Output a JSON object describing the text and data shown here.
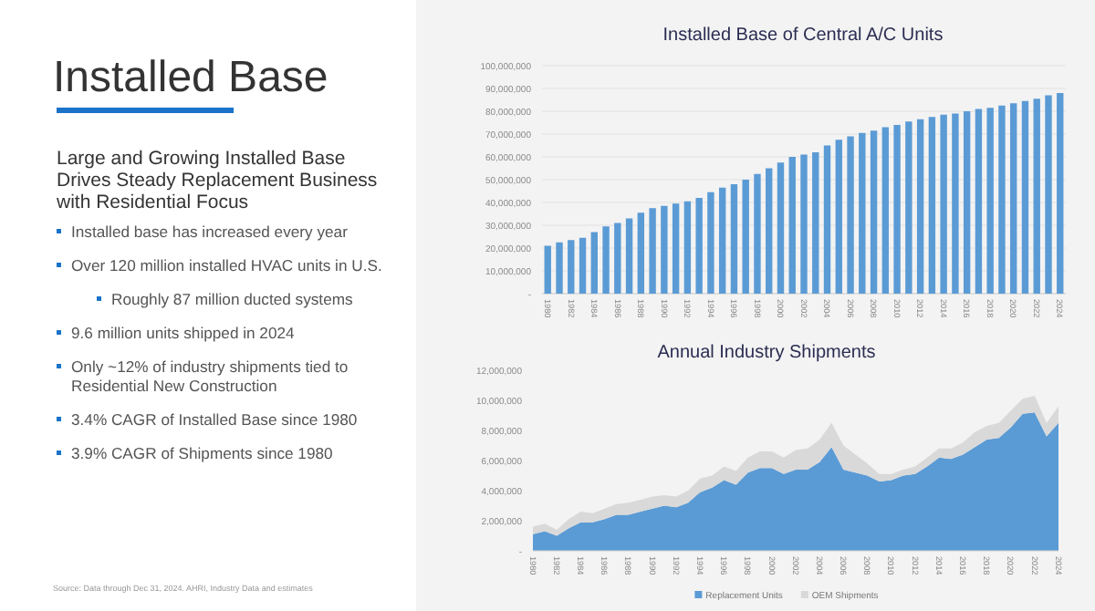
{
  "chart_data": [
    {
      "type": "other",
      "title": "Installed Base",
      "subtitle": "Large and Growing Installed Base Drives Steady Replacement Business with Residential Focus",
      "annotations": [
        "Installed base has increased every year",
        "Over 120 million installed HVAC units in U.S.",
        "Roughly 87 million ducted systems",
        "9.6 million units shipped in 2024",
        "Only ~12% of industry shipments tied to Residential New Construction",
        "3.4% CAGR of Installed Base since 1980",
        "3.9% CAGR of Shipments since 1980",
        "Source: Data through Dec 31, 2024.  AHRI, Industry Data and estimates"
      ]
    },
    {
      "type": "bar",
      "title": "Installed Base of Central A/C Units",
      "categories": [
        "1980",
        null,
        "1982",
        null,
        "1984",
        null,
        "1986",
        null,
        "1988",
        null,
        "1990",
        null,
        "1992",
        null,
        "1994",
        null,
        "1996",
        null,
        "1998",
        null,
        "2000",
        null,
        "2002",
        null,
        "2004",
        null,
        "2006",
        null,
        "2008",
        null,
        "2010",
        null,
        "2012",
        null,
        "2014",
        null,
        "2016",
        null,
        "2018",
        null,
        "2020",
        null,
        "2022",
        null,
        "2024"
      ],
      "values": [
        21000000,
        22500000,
        23500000,
        24500000,
        27000000,
        29500000,
        31000000,
        33000000,
        35500000,
        37500000,
        38500000,
        39500000,
        40500000,
        42000000,
        44500000,
        46500000,
        48000000,
        50000000,
        52500000,
        55000000,
        57500000,
        60000000,
        61000000,
        62000000,
        65000000,
        67500000,
        69000000,
        70500000,
        71500000,
        73000000,
        74000000,
        75500000,
        76500000,
        77500000,
        78500000,
        79000000,
        80000000,
        81000000,
        81500000,
        82500000,
        83500000,
        84500000,
        85500000,
        87000000,
        88000000
      ],
      "color": "#5b9bd5",
      "ylim": [
        0,
        100000000
      ],
      "yticks": [
        {
          "value": 0,
          "label": "-"
        },
        {
          "value": 10000000,
          "label": "10,000,000"
        },
        {
          "value": 20000000,
          "label": "20,000,000"
        },
        {
          "value": 30000000,
          "label": "30,000,000"
        },
        {
          "value": 40000000,
          "label": "40,000,000"
        },
        {
          "value": 50000000,
          "label": "50,000,000"
        },
        {
          "value": 60000000,
          "label": "60,000,000"
        },
        {
          "value": 70000000,
          "label": "70,000,000"
        },
        {
          "value": 80000000,
          "label": "80,000,000"
        },
        {
          "value": 90000000,
          "label": "90,000,000"
        },
        {
          "value": 100000000,
          "label": "100,000,000"
        }
      ],
      "grid": true
    },
    {
      "type": "area",
      "title": "Annual Industry Shipments",
      "stacked": true,
      "legend": "bottom",
      "categories": [
        "1980",
        null,
        "1982",
        null,
        "1984",
        null,
        "1986",
        null,
        "1988",
        null,
        "1990",
        null,
        "1992",
        null,
        "1994",
        null,
        "1996",
        null,
        "1998",
        null,
        "2000",
        null,
        "2002",
        null,
        "2004",
        null,
        "2006",
        null,
        "2008",
        null,
        "2010",
        null,
        "2012",
        null,
        "2014",
        null,
        "2016",
        null,
        "2018",
        null,
        "2020",
        null,
        "2022",
        null,
        "2024"
      ],
      "series": [
        {
          "name": "Replacement Units",
          "color": "#5b9bd5",
          "values": [
            1100000,
            1300000,
            1000000,
            1500000,
            1900000,
            1900000,
            2100000,
            2400000,
            2400000,
            2600000,
            2800000,
            3000000,
            2900000,
            3200000,
            3900000,
            4200000,
            4700000,
            4400000,
            5200000,
            5500000,
            5500000,
            5100000,
            5400000,
            5400000,
            5900000,
            6900000,
            5400000,
            5200000,
            5000000,
            4600000,
            4700000,
            5000000,
            5100000,
            5600000,
            6200000,
            6100000,
            6400000,
            6900000,
            7400000,
            7500000,
            8200000,
            9100000,
            9200000,
            7600000,
            8500000
          ]
        },
        {
          "name": "OEM Shipments",
          "color": "#d9d9d9",
          "values": [
            500000,
            500000,
            400000,
            600000,
            700000,
            600000,
            700000,
            700000,
            800000,
            800000,
            800000,
            700000,
            700000,
            800000,
            900000,
            800000,
            900000,
            900000,
            1000000,
            1100000,
            1100000,
            1100000,
            1300000,
            1400000,
            1500000,
            1600000,
            1600000,
            1200000,
            800000,
            500000,
            400000,
            400000,
            500000,
            600000,
            600000,
            700000,
            800000,
            1000000,
            900000,
            1000000,
            1100000,
            1000000,
            1100000,
            900000,
            1100000
          ]
        }
      ],
      "ylim": [
        0,
        12000000
      ],
      "yticks": [
        {
          "value": 0,
          "label": "-"
        },
        {
          "value": 2000000,
          "label": "2,000,000"
        },
        {
          "value": 4000000,
          "label": "4,000,000"
        },
        {
          "value": 6000000,
          "label": "6,000,000"
        },
        {
          "value": 8000000,
          "label": "8,000,000"
        },
        {
          "value": 10000000,
          "label": "10,000,000"
        },
        {
          "value": 12000000,
          "label": "12,000,000"
        }
      ]
    }
  ]
}
